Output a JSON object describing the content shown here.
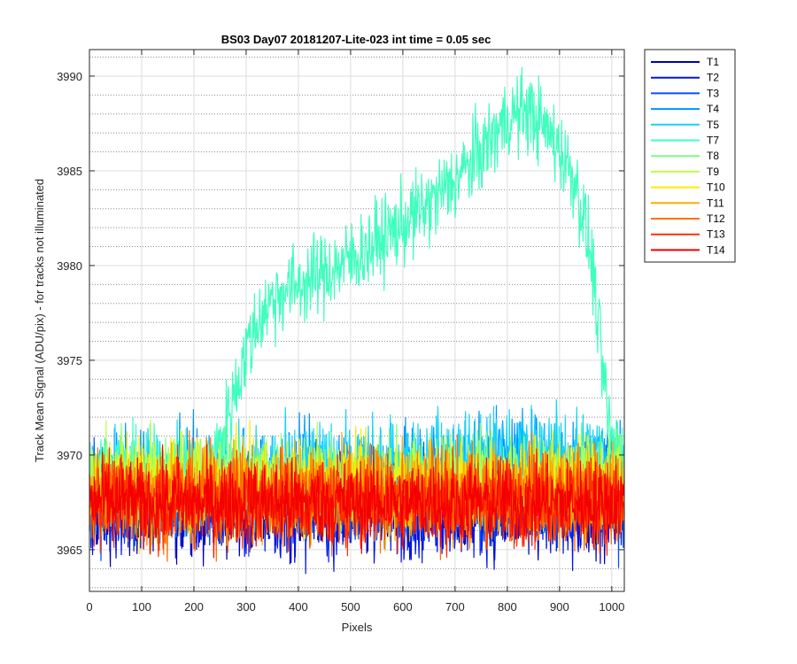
{
  "chart_data": {
    "type": "line",
    "title": "BS03 Day07 20181207-Lite-023 int time = 0.05 sec",
    "xlabel": "Pixels",
    "ylabel": "Track Mean Signal (ADU/pix) - for tracks not illuminated",
    "xlim": [
      0,
      1024
    ],
    "ylim": [
      3962.8,
      3991.4
    ],
    "x_ticks": [
      0,
      100,
      200,
      300,
      400,
      500,
      600,
      700,
      800,
      900,
      1000
    ],
    "y_ticks": [
      3965,
      3970,
      3975,
      3980,
      3985,
      3990
    ],
    "y_minor_grid_step": 1,
    "grid": true,
    "legend_position": "outside-right",
    "series": [
      {
        "name": "T1",
        "color": "#0000ae",
        "mean": 3967.2,
        "noise": 1.2,
        "points_x": [
          0,
          1024
        ],
        "points_y": [
          3967.2,
          3967.2
        ]
      },
      {
        "name": "T2",
        "color": "#0014e6",
        "mean": 3967.1,
        "noise": 1.3,
        "points_x": [
          0,
          1024
        ],
        "points_y": [
          3967.1,
          3967.1
        ]
      },
      {
        "name": "T3",
        "color": "#0050ff",
        "mean": 3967.6,
        "noise": 1.2,
        "points_x": [
          0,
          1024
        ],
        "points_y": [
          3967.6,
          3967.6
        ]
      },
      {
        "name": "T4",
        "color": "#0093ff",
        "mean": 3968.8,
        "noise": 1.3,
        "points_x": [
          0,
          100,
          200,
          300,
          400,
          500,
          600,
          700,
          800,
          900,
          1024
        ],
        "points_y": [
          3968.6,
          3968.5,
          3968.6,
          3968.7,
          3968.8,
          3968.9,
          3969.0,
          3969.4,
          3969.5,
          3969.6,
          3969.4
        ]
      },
      {
        "name": "T5",
        "color": "#16d3fb",
        "mean": 3969.0,
        "noise": 1.3,
        "points_x": [
          0,
          100,
          200,
          300,
          400,
          500,
          600,
          700,
          800,
          900,
          1024
        ],
        "points_y": [
          3968.8,
          3968.7,
          3968.8,
          3968.9,
          3969.1,
          3969.2,
          3969.4,
          3969.7,
          3969.9,
          3970.0,
          3969.8
        ]
      },
      {
        "name": "T7",
        "color": "#3fffbe",
        "mean": 3968.5,
        "noise": 1.1,
        "points_x": [
          0,
          100,
          200,
          230,
          250,
          270,
          300,
          330,
          360,
          400,
          450,
          500,
          550,
          600,
          650,
          700,
          750,
          800,
          840,
          870,
          900,
          930,
          950,
          965,
          980,
          1000,
          1024
        ],
        "points_y": [
          3969.2,
          3969.0,
          3969.1,
          3969.5,
          3970.5,
          3972.5,
          3975.5,
          3977.5,
          3978.5,
          3979.0,
          3979.6,
          3980.3,
          3981.2,
          3982.2,
          3983.2,
          3984.5,
          3986.0,
          3987.8,
          3988.2,
          3987.3,
          3986.2,
          3984.5,
          3982.0,
          3979.5,
          3975.0,
          3970.5,
          3970.0
        ]
      },
      {
        "name": "T8",
        "color": "#7cff82",
        "mean": 3968.7,
        "noise": 1.2,
        "points_x": [
          0,
          1024
        ],
        "points_y": [
          3968.7,
          3968.8
        ]
      },
      {
        "name": "T9",
        "color": "#bcff43",
        "mean": 3968.5,
        "noise": 1.2,
        "points_x": [
          0,
          1024
        ],
        "points_y": [
          3968.5,
          3968.6
        ]
      },
      {
        "name": "T10",
        "color": "#ffeb00",
        "mean": 3968.3,
        "noise": 1.2,
        "points_x": [
          0,
          1024
        ],
        "points_y": [
          3968.3,
          3968.4
        ]
      },
      {
        "name": "T11",
        "color": "#ffad00",
        "mean": 3968.0,
        "noise": 1.2,
        "points_x": [
          0,
          1024
        ],
        "points_y": [
          3968.0,
          3968.0
        ]
      },
      {
        "name": "T12",
        "color": "#ff7000",
        "mean": 3967.8,
        "noise": 1.3,
        "points_x": [
          0,
          1024
        ],
        "points_y": [
          3967.8,
          3967.8
        ]
      },
      {
        "name": "T13",
        "color": "#ff3000",
        "mean": 3967.6,
        "noise": 1.2,
        "points_x": [
          0,
          1024
        ],
        "points_y": [
          3967.6,
          3967.6
        ]
      },
      {
        "name": "T14",
        "color": "#f50000",
        "mean": 3967.5,
        "noise": 1.1,
        "points_x": [
          0,
          1024
        ],
        "points_y": [
          3967.5,
          3967.5
        ]
      }
    ]
  }
}
